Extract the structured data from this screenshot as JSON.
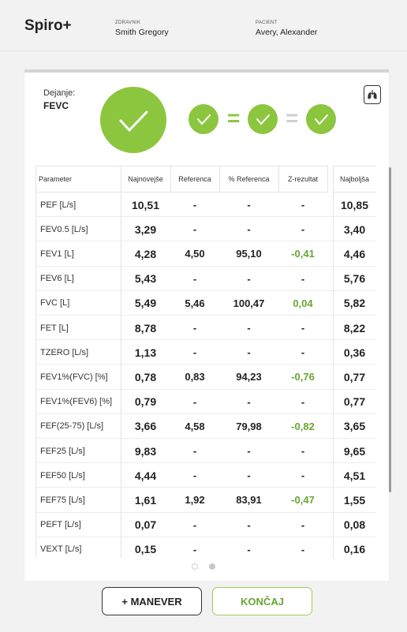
{
  "header": {
    "app_title": "Spiro+",
    "doctor_label": "ZDRAVNIK",
    "doctor_name": "Smith Gregory",
    "patient_label": "PACIENT",
    "patient_name": "Avery, Alexander"
  },
  "action": {
    "label": "Dejanje:",
    "value": "FEVC"
  },
  "status": {
    "accent_color": "#8cc63f",
    "equals_1": "=",
    "equals_2": "="
  },
  "table": {
    "headers": [
      "Parameter",
      "Najnovejše",
      "Referenca",
      "% Referenca",
      "Z-rezultat",
      "Najboljša"
    ],
    "rows": [
      {
        "param": "PEF [L/s]",
        "latest": "10,51",
        "ref": "-",
        "pref": "-",
        "z": "-",
        "best": "10,85"
      },
      {
        "param": "FEV0.5 [L/s]",
        "latest": "3,29",
        "ref": "-",
        "pref": "-",
        "z": "-",
        "best": "3,40"
      },
      {
        "param": "FEV1 [L]",
        "latest": "4,28",
        "ref": "4,50",
        "pref": "95,10",
        "z": "-0,41",
        "best": "4,46"
      },
      {
        "param": "FEV6 [L]",
        "latest": "5,43",
        "ref": "-",
        "pref": "-",
        "z": "-",
        "best": "5,76"
      },
      {
        "param": "FVC [L]",
        "latest": "5,49",
        "ref": "5,46",
        "pref": "100,47",
        "z": "0,04",
        "best": "5,82"
      },
      {
        "param": "FET [L]",
        "latest": "8,78",
        "ref": "-",
        "pref": "-",
        "z": "-",
        "best": "8,22"
      },
      {
        "param": "TZERO [L/s]",
        "latest": "1,13",
        "ref": "-",
        "pref": "-",
        "z": "-",
        "best": "0,36"
      },
      {
        "param": "FEV1%(FVC) [%]",
        "latest": "0,78",
        "ref": "0,83",
        "pref": "94,23",
        "z": "-0,76",
        "best": "0,77"
      },
      {
        "param": "FEV1%(FEV6) [%]",
        "latest": "0,79",
        "ref": "-",
        "pref": "-",
        "z": "-",
        "best": "0,77"
      },
      {
        "param": "FEF(25-75) [L/s]",
        "latest": "3,66",
        "ref": "4,58",
        "pref": "79,98",
        "z": "-0,82",
        "best": "3,65"
      },
      {
        "param": "FEF25 [L/s]",
        "latest": "9,83",
        "ref": "-",
        "pref": "-",
        "z": "-",
        "best": "9,65"
      },
      {
        "param": "FEF50 [L/s]",
        "latest": "4,44",
        "ref": "-",
        "pref": "-",
        "z": "-",
        "best": "4,51"
      },
      {
        "param": "FEF75 [L/s]",
        "latest": "1,61",
        "ref": "1,92",
        "pref": "83,91",
        "z": "-0,47",
        "best": "1,55"
      },
      {
        "param": "PEFT [L/s]",
        "latest": "0,07",
        "ref": "-",
        "pref": "-",
        "z": "-",
        "best": "0,08"
      },
      {
        "param": "VEXT [L/s]",
        "latest": "0,15",
        "ref": "-",
        "pref": "-",
        "z": "-",
        "best": "0,16"
      }
    ]
  },
  "pagination": {
    "active_page": 2,
    "page_count": 2
  },
  "buttons": {
    "maneuver": "+ MANEVER",
    "finish": "KONČAJ"
  }
}
